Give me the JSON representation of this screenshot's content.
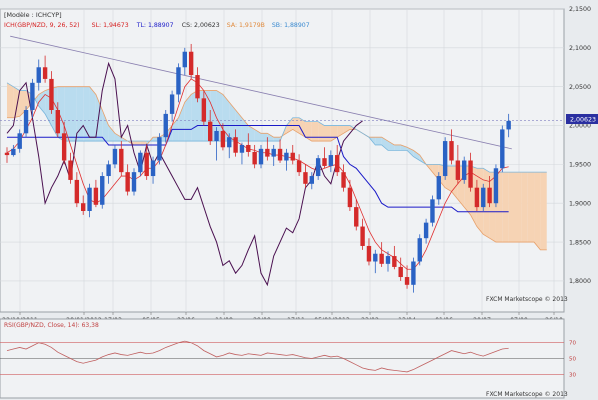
{
  "chart_data": [
    {
      "type": "candlestick",
      "title": "[Modèle : ICHCYP]",
      "legend": [
        {
          "name": "ICH(GBP/NZD, 9, 26, 52)",
          "color": "#d62020"
        },
        {
          "name": "SL: 1,94673",
          "color": "#d62020"
        },
        {
          "name": "TL: 1,88907",
          "color": "#1a1ac8"
        },
        {
          "name": "CS: 2,00623",
          "color": "#333333"
        },
        {
          "name": "SA: 1,9179B",
          "color": "#e08a3c"
        },
        {
          "name": "SB: 1,88907",
          "color": "#3a8ad0"
        }
      ],
      "y_ticks": [
        "2,1500",
        "2,1000",
        "2,0500",
        "2,0000",
        "1,9500",
        "1,9000",
        "1,8500",
        "1,8000"
      ],
      "ylim": [
        1.76,
        2.15
      ],
      "x_ticks": [
        "22/10/2011",
        "28/01/2012",
        "17/03",
        "05/05",
        "23/06",
        "11/08",
        "29/09",
        "17/11",
        "05/01/2013",
        "23/02",
        "13/04",
        "01/06",
        "20/07",
        "07/09",
        "26/10"
      ],
      "current_price_label": "2,00623",
      "watermark": "FXCM Marketscope © 2013",
      "candles": [
        [
          1.965,
          1.972,
          1.952,
          1.962
        ],
        [
          1.962,
          1.975,
          1.96,
          1.97
        ],
        [
          1.97,
          1.995,
          1.965,
          1.99
        ],
        [
          1.99,
          2.025,
          1.985,
          2.02
        ],
        [
          2.02,
          2.06,
          2.01,
          2.055
        ],
        [
          2.055,
          2.085,
          2.045,
          2.075
        ],
        [
          2.075,
          2.09,
          2.055,
          2.06
        ],
        [
          2.06,
          2.07,
          2.015,
          2.02
        ],
        [
          2.02,
          2.03,
          1.985,
          1.99
        ],
        [
          1.99,
          2.005,
          1.95,
          1.955
        ],
        [
          1.955,
          1.965,
          1.925,
          1.93
        ],
        [
          1.93,
          1.94,
          1.895,
          1.9
        ],
        [
          1.9,
          1.91,
          1.885,
          1.89
        ],
        [
          1.89,
          1.925,
          1.882,
          1.92
        ],
        [
          1.92,
          1.93,
          1.895,
          1.898
        ],
        [
          1.898,
          1.94,
          1.893,
          1.935
        ],
        [
          1.935,
          1.955,
          1.925,
          1.95
        ],
        [
          1.95,
          1.975,
          1.945,
          1.97
        ],
        [
          1.97,
          1.98,
          1.935,
          1.94
        ],
        [
          1.94,
          1.95,
          1.91,
          1.915
        ],
        [
          1.915,
          1.945,
          1.91,
          1.94
        ],
        [
          1.94,
          1.968,
          1.935,
          1.965
        ],
        [
          1.965,
          1.975,
          1.93,
          1.935
        ],
        [
          1.935,
          1.96,
          1.925,
          1.955
        ],
        [
          1.955,
          1.99,
          1.95,
          1.985
        ],
        [
          1.985,
          2.02,
          1.978,
          2.015
        ],
        [
          2.015,
          2.045,
          2.005,
          2.04
        ],
        [
          2.04,
          2.08,
          2.03,
          2.075
        ],
        [
          2.075,
          2.1,
          2.065,
          2.095
        ],
        [
          2.095,
          2.105,
          2.06,
          2.065
        ],
        [
          2.065,
          2.075,
          2.03,
          2.035
        ],
        [
          2.035,
          2.045,
          2.0,
          2.005
        ],
        [
          2.005,
          2.02,
          1.975,
          1.98
        ],
        [
          1.98,
          1.998,
          1.955,
          1.993
        ],
        [
          1.993,
          2.003,
          1.968,
          1.972
        ],
        [
          1.972,
          1.99,
          1.958,
          1.985
        ],
        [
          1.985,
          1.995,
          1.96,
          1.965
        ],
        [
          1.965,
          1.978,
          1.95,
          1.975
        ],
        [
          1.975,
          1.99,
          1.96,
          1.966
        ],
        [
          1.966,
          1.975,
          1.945,
          1.95
        ],
        [
          1.95,
          1.975,
          1.945,
          1.97
        ],
        [
          1.97,
          1.985,
          1.955,
          1.96
        ],
        [
          1.96,
          1.975,
          1.948,
          1.97
        ],
        [
          1.97,
          1.982,
          1.952,
          1.955
        ],
        [
          1.955,
          1.97,
          1.942,
          1.965
        ],
        [
          1.965,
          1.975,
          1.95,
          1.955
        ],
        [
          1.955,
          1.963,
          1.935,
          1.94
        ],
        [
          1.94,
          1.95,
          1.92,
          1.925
        ],
        [
          1.925,
          1.94,
          1.918,
          1.935
        ],
        [
          1.935,
          1.962,
          1.93,
          1.958
        ],
        [
          1.958,
          1.972,
          1.945,
          1.948
        ],
        [
          1.948,
          1.968,
          1.94,
          1.962
        ],
        [
          1.962,
          1.975,
          1.935,
          1.94
        ],
        [
          1.94,
          1.95,
          1.915,
          1.92
        ],
        [
          1.92,
          1.93,
          1.89,
          1.895
        ],
        [
          1.895,
          1.905,
          1.865,
          1.87
        ],
        [
          1.87,
          1.88,
          1.84,
          1.845
        ],
        [
          1.845,
          1.855,
          1.82,
          1.825
        ],
        [
          1.825,
          1.84,
          1.81,
          1.835
        ],
        [
          1.835,
          1.85,
          1.818,
          1.822
        ],
        [
          1.822,
          1.838,
          1.812,
          1.832
        ],
        [
          1.832,
          1.845,
          1.815,
          1.818
        ],
        [
          1.818,
          1.83,
          1.8,
          1.805
        ],
        [
          1.805,
          1.82,
          1.79,
          1.795
        ],
        [
          1.795,
          1.83,
          1.785,
          1.825
        ],
        [
          1.825,
          1.86,
          1.82,
          1.855
        ],
        [
          1.855,
          1.88,
          1.848,
          1.875
        ],
        [
          1.875,
          1.91,
          1.87,
          1.905
        ],
        [
          1.905,
          1.94,
          1.898,
          1.935
        ],
        [
          1.935,
          1.985,
          1.93,
          1.98
        ],
        [
          1.98,
          1.995,
          1.95,
          1.955
        ],
        [
          1.955,
          1.975,
          1.925,
          1.93
        ],
        [
          1.93,
          1.96,
          1.925,
          1.955
        ],
        [
          1.955,
          1.965,
          1.915,
          1.92
        ],
        [
          1.92,
          1.93,
          1.89,
          1.895
        ],
        [
          1.895,
          1.925,
          1.89,
          1.92
        ],
        [
          1.92,
          1.935,
          1.895,
          1.9
        ],
        [
          1.9,
          1.95,
          1.895,
          1.945
        ],
        [
          1.945,
          2.0,
          1.94,
          1.995
        ],
        [
          1.995,
          2.015,
          1.985,
          2.006
        ]
      ],
      "tenkan_sen": [
        1.965,
        1.97,
        1.98,
        1.995,
        2.01,
        2.03,
        2.04,
        2.035,
        2.02,
        2.0,
        1.975,
        1.95,
        1.925,
        1.905,
        1.9,
        1.905,
        1.915,
        1.925,
        1.935,
        1.935,
        1.93,
        1.935,
        1.945,
        1.945,
        1.955,
        1.975,
        2.0,
        2.025,
        2.05,
        2.06,
        2.055,
        2.045,
        2.03,
        2.01,
        1.995,
        1.985,
        1.98,
        1.975,
        1.97,
        1.968,
        1.965,
        1.965,
        1.962,
        1.962,
        1.96,
        1.958,
        1.955,
        1.95,
        1.945,
        1.942,
        1.945,
        1.948,
        1.95,
        1.94,
        1.925,
        1.905,
        1.885,
        1.865,
        1.85,
        1.84,
        1.835,
        1.83,
        1.822,
        1.815,
        1.815,
        1.825,
        1.84,
        1.86,
        1.88,
        1.9,
        1.915,
        1.925,
        1.935,
        1.94,
        1.935,
        1.93,
        1.928,
        1.935,
        1.945,
        1.947
      ],
      "kijun_sen": [
        1.985,
        1.985,
        1.985,
        1.985,
        1.985,
        1.985,
        1.985,
        1.985,
        1.985,
        1.985,
        1.985,
        1.985,
        1.985,
        1.985,
        1.985,
        1.985,
        1.975,
        1.975,
        1.975,
        1.975,
        1.975,
        1.975,
        1.975,
        1.975,
        1.975,
        1.975,
        1.995,
        1.995,
        1.995,
        1.995,
        2.0,
        2.0,
        2.0,
        2.0,
        2.0,
        2.0,
        2.0,
        2.0,
        2.0,
        2.0,
        2.0,
        2.0,
        2.0,
        2.0,
        2.0,
        2.0,
        2.0,
        1.985,
        1.985,
        1.985,
        1.985,
        1.985,
        1.985,
        1.96,
        1.95,
        1.945,
        1.935,
        1.925,
        1.915,
        1.9,
        1.895,
        1.895,
        1.895,
        1.895,
        1.895,
        1.895,
        1.895,
        1.895,
        1.895,
        1.895,
        1.895,
        1.889,
        1.889,
        1.889,
        1.889,
        1.889,
        1.889,
        1.889,
        1.889,
        1.889
      ],
      "chikou_span": [
        1.99,
        2.0,
        2.045,
        2.055,
        2.01,
        1.96,
        1.9,
        1.92,
        1.935,
        1.955,
        1.93,
        1.99,
        2.0,
        1.985,
        1.985,
        2.045,
        2.08,
        2.06,
        1.985,
        2.0,
        1.965,
        1.94,
        1.975,
        1.95,
        1.965,
        1.95,
        1.935,
        1.92,
        1.905,
        1.905,
        1.92,
        1.895,
        1.87,
        1.85,
        1.82,
        1.826,
        1.81,
        1.82,
        1.84,
        1.858,
        1.81,
        1.795,
        1.832,
        1.85,
        1.868,
        1.862,
        1.88,
        1.92,
        1.93,
        1.955,
        1.935,
        1.925,
        1.955,
        1.98,
        1.99,
        2.0,
        2.006
      ],
      "senkou_a": [
        2.01,
        2.01,
        2.012,
        2.02,
        2.03,
        2.04,
        2.045,
        2.048,
        2.05,
        2.05,
        2.05,
        2.05,
        2.05,
        2.05,
        2.04,
        2.02,
        2.0,
        1.99,
        1.985,
        1.98,
        1.975,
        1.975,
        1.975,
        1.985,
        1.985,
        1.99,
        2.0,
        2.01,
        2.03,
        2.04,
        2.045,
        2.045,
        2.045,
        2.045,
        2.04,
        2.03,
        2.02,
        2.01,
        2.0,
        1.995,
        1.99,
        1.99,
        1.985,
        1.985,
        1.99,
        1.995,
        1.99,
        1.985,
        1.98,
        1.98,
        1.98,
        1.98,
        1.985,
        1.99,
        1.995,
        1.995,
        1.99,
        1.985,
        1.985,
        1.985,
        1.98,
        1.975,
        1.975,
        1.972,
        1.968,
        1.962,
        1.95,
        1.94,
        1.93,
        1.92,
        1.915,
        1.905,
        1.895,
        1.885,
        1.87,
        1.86,
        1.855,
        1.85,
        1.85,
        1.85,
        1.85,
        1.85,
        1.85,
        1.85,
        1.84,
        1.84
      ],
      "senkou_b": [
        2.055,
        2.05,
        2.045,
        2.045,
        2.04,
        2.025,
        2.015,
        2.0,
        1.985,
        1.98,
        1.98,
        1.98,
        1.98,
        1.98,
        1.98,
        1.98,
        1.98,
        1.98,
        1.98,
        1.98,
        1.98,
        1.98,
        1.98,
        1.98,
        1.98,
        1.98,
        1.98,
        1.98,
        1.98,
        1.98,
        1.98,
        1.98,
        1.98,
        1.98,
        1.98,
        1.98,
        1.98,
        1.98,
        1.98,
        1.98,
        1.98,
        1.98,
        1.98,
        1.98,
        2.0,
        2.01,
        2.01,
        2.005,
        2.005,
        2.005,
        2.0,
        2.0,
        2.0,
        2.0,
        2.0,
        1.995,
        1.99,
        1.985,
        1.975,
        1.975,
        1.968,
        1.968,
        1.968,
        1.968,
        1.96,
        1.955,
        1.95,
        1.95,
        1.95,
        1.948,
        1.948,
        1.948,
        1.948,
        1.948,
        1.945,
        1.945,
        1.94,
        1.94,
        1.94,
        1.94,
        1.94,
        1.94,
        1.94,
        1.94,
        1.94,
        1.94
      ],
      "trendline": [
        [
          0.5,
          2.115
        ],
        [
          79.5,
          1.97
        ]
      ]
    },
    {
      "type": "line",
      "title": "RSI(GBP/NZD, Close, 14): 63,38",
      "ylim": [
        0,
        100
      ],
      "levels": [
        70,
        50,
        30
      ],
      "watermark": "FXCM Marketscope © 2013",
      "values": [
        60,
        62,
        64,
        62,
        66,
        70,
        68,
        64,
        58,
        54,
        50,
        46,
        44,
        46,
        48,
        52,
        55,
        57,
        55,
        54,
        56,
        58,
        56,
        57,
        60,
        64,
        67,
        70,
        72,
        70,
        66,
        60,
        56,
        52,
        54,
        57,
        55,
        54,
        56,
        55,
        54,
        57,
        56,
        55,
        54,
        55,
        53,
        51,
        50,
        52,
        54,
        52,
        53,
        50,
        46,
        42,
        38,
        36,
        35,
        38,
        36,
        35,
        34,
        33,
        36,
        40,
        44,
        48,
        52,
        56,
        60,
        58,
        56,
        58,
        55,
        53,
        56,
        59,
        62,
        63
      ]
    }
  ]
}
